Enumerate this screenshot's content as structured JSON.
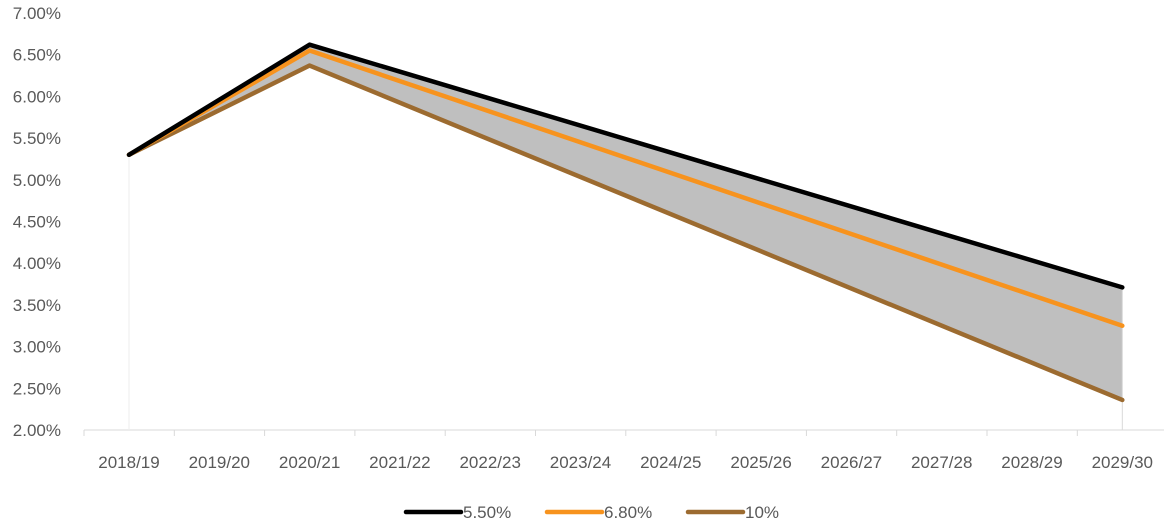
{
  "chart_data": {
    "type": "line",
    "categories": [
      "2018/19",
      "2019/20",
      "2020/21",
      "2021/22",
      "2022/23",
      "2023/24",
      "2024/25",
      "2025/26",
      "2026/27",
      "2027/28",
      "2028/29",
      "2029/30"
    ],
    "series": [
      {
        "name": "5.50%",
        "color": "#000000",
        "values": [
          5.3,
          null,
          6.62,
          null,
          null,
          null,
          null,
          null,
          null,
          null,
          null,
          3.71
        ]
      },
      {
        "name": "6.80%",
        "color": "#F7931E",
        "values": [
          5.3,
          null,
          6.55,
          null,
          null,
          null,
          null,
          null,
          null,
          null,
          null,
          3.25
        ]
      },
      {
        "name": "10%",
        "color": "#9C6B30",
        "values": [
          5.3,
          null,
          6.37,
          null,
          null,
          null,
          null,
          null,
          null,
          null,
          null,
          2.36
        ]
      }
    ],
    "band": {
      "between": [
        "5.50%",
        "10%"
      ],
      "color": "#BFBFBF"
    },
    "ylim": [
      2.0,
      7.0
    ],
    "yticks": [
      "7.00%",
      "6.50%",
      "6.00%",
      "5.50%",
      "5.00%",
      "4.50%",
      "4.00%",
      "3.50%",
      "3.00%",
      "2.50%",
      "2.00%"
    ],
    "ytick_values": [
      7.0,
      6.5,
      6.0,
      5.5,
      5.0,
      4.5,
      4.0,
      3.5,
      3.0,
      2.5,
      2.0
    ],
    "grid": false,
    "legend_position": "bottom"
  }
}
